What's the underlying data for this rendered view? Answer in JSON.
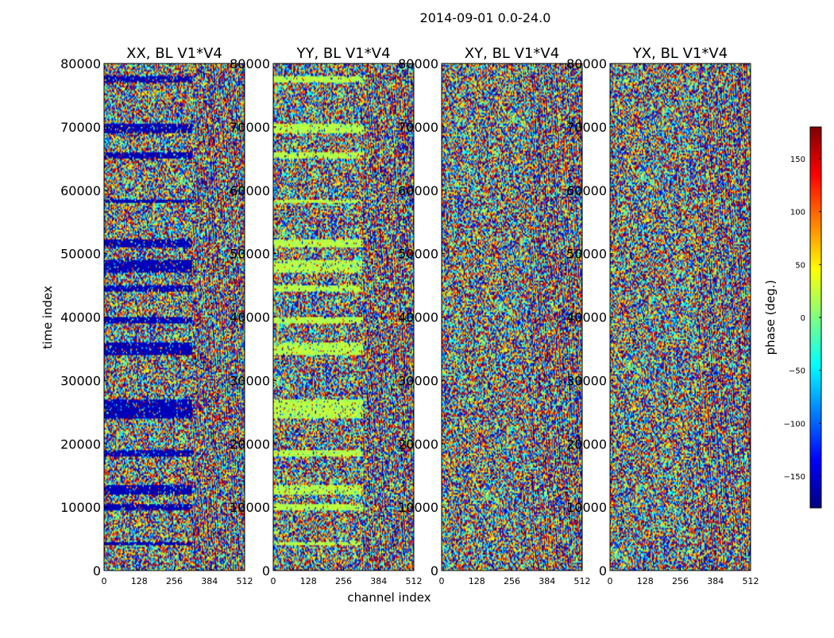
{
  "figure": {
    "suptitle": "2014-09-01 0.0-24.0",
    "xlabel": "channel index",
    "ylabel": "time index"
  },
  "colorbar": {
    "label": "phase (deg.)",
    "range": [
      -180,
      180
    ],
    "ticks": [
      -150,
      -100,
      -50,
      0,
      50,
      100,
      150
    ],
    "tick_labels": [
      "−150",
      "−100",
      "−50",
      "0",
      "50",
      "100",
      "150"
    ],
    "colormap": "jet",
    "stops": [
      "#00007f",
      "#0000ff",
      "#007fff",
      "#00ffff",
      "#7fff7f",
      "#ffff00",
      "#ff7f00",
      "#ff0000",
      "#7f0000"
    ]
  },
  "chart_data": [
    {
      "type": "heatmap",
      "title": "XX, BL V1*V4",
      "x_range": [
        0,
        512
      ],
      "y_range": [
        0,
        80000
      ],
      "x_ticks": [
        0,
        128,
        256,
        384,
        512
      ],
      "y_ticks": [
        0,
        10000,
        20000,
        30000,
        40000,
        50000,
        60000,
        70000,
        80000
      ],
      "value_range": [
        -180,
        180
      ],
      "flag_phase": -160,
      "flag_channel_max": 320,
      "flag_time_bands": [
        [
          77000,
          78000
        ],
        [
          69000,
          70500
        ],
        [
          65000,
          66000
        ],
        [
          58000,
          58600
        ],
        [
          51000,
          52300
        ],
        [
          47000,
          49000
        ],
        [
          44000,
          45000
        ],
        [
          39000,
          40000
        ],
        [
          34000,
          36000
        ],
        [
          24000,
          27000
        ],
        [
          18000,
          19000
        ],
        [
          12000,
          13500
        ],
        [
          9500,
          10500
        ],
        [
          4000,
          4600
        ]
      ]
    },
    {
      "type": "heatmap",
      "title": "YY, BL V1*V4",
      "x_range": [
        0,
        512
      ],
      "y_range": [
        0,
        80000
      ],
      "x_ticks": [
        0,
        128,
        256,
        384,
        512
      ],
      "y_ticks": [
        0,
        10000,
        20000,
        30000,
        40000,
        50000,
        60000,
        70000,
        80000
      ],
      "value_range": [
        -180,
        180
      ],
      "flag_phase": 20,
      "flag_channel_max": 330,
      "flag_time_bands": [
        [
          77000,
          78000
        ],
        [
          69000,
          70500
        ],
        [
          65000,
          66000
        ],
        [
          58000,
          58600
        ],
        [
          51000,
          52300
        ],
        [
          47000,
          49000
        ],
        [
          44000,
          45000
        ],
        [
          39000,
          40000
        ],
        [
          34000,
          36000
        ],
        [
          24000,
          27000
        ],
        [
          18000,
          19000
        ],
        [
          12000,
          13500
        ],
        [
          9500,
          10500
        ],
        [
          4000,
          4600
        ]
      ]
    },
    {
      "type": "heatmap",
      "title": "XY, BL V1*V4",
      "x_range": [
        0,
        512
      ],
      "y_range": [
        0,
        80000
      ],
      "x_ticks": [
        0,
        128,
        256,
        384,
        512
      ],
      "y_ticks": [
        0,
        10000,
        20000,
        30000,
        40000,
        50000,
        60000,
        70000,
        80000
      ],
      "value_range": [
        -180,
        180
      ]
    },
    {
      "type": "heatmap",
      "title": "YX, BL V1*V4",
      "x_range": [
        0,
        512
      ],
      "y_range": [
        0,
        80000
      ],
      "x_ticks": [
        0,
        128,
        256,
        384,
        512
      ],
      "y_ticks": [
        0,
        10000,
        20000,
        30000,
        40000,
        50000,
        60000,
        70000,
        80000
      ],
      "value_range": [
        -180,
        180
      ]
    }
  ]
}
